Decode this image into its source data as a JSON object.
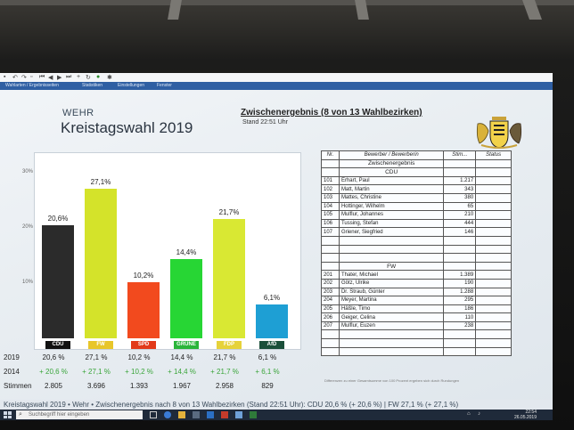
{
  "window": {
    "tabs": [
      "Wahlarten / Ergebnisseiten",
      "Statistiken",
      "Einstellungen",
      "Fenster"
    ]
  },
  "slide": {
    "brand": "WEHR",
    "title": "Kreistagswahl 2019",
    "interim": "Zwischenergebnis (8 von 13 Wahlbezirken)",
    "stand": "Stand 22:51 Uhr"
  },
  "chart_data": {
    "type": "bar",
    "categories": [
      "CDU",
      "FW",
      "SPD",
      "GRÜNE",
      "FDP",
      "AfD"
    ],
    "values": [
      20.6,
      27.1,
      10.2,
      14.4,
      21.7,
      6.1
    ],
    "value_labels": [
      "20,6%",
      "27,1%",
      "10,2%",
      "14,4%",
      "21,7%",
      "6,1%"
    ],
    "colors": [
      "#2b2b2b",
      "#d4e32a",
      "#f24a1e",
      "#27d634",
      "#d9e833",
      "#1e9fd4"
    ],
    "label_colors": [
      "#111111",
      "#e8c62a",
      "#e23a1a",
      "#2ab53a",
      "#e6d23a",
      "#1a4f3a"
    ],
    "label_text_colors": [
      "#ffffff",
      "#ffffff",
      "#ffffff",
      "#ffffff",
      "#ffffff",
      "#ffffff"
    ],
    "yticks": [
      "10%",
      "20%",
      "30%"
    ],
    "ylim": [
      0,
      32
    ]
  },
  "results": {
    "rows": [
      {
        "label": "2019",
        "values": [
          "20,6 %",
          "27,1 %",
          "10,2 %",
          "14,4 %",
          "21,7 %",
          "6,1 %"
        ]
      },
      {
        "label": "2014",
        "values": [
          "+ 20,6 %",
          "+ 27,1 %",
          "+ 10,2 %",
          "+ 14,4 %",
          "+ 21,7 %",
          "+ 6,1 %"
        ]
      },
      {
        "label": "Stimmen",
        "values": [
          "2.805",
          "3.696",
          "1.393",
          "1.967",
          "2.958",
          "829"
        ]
      }
    ]
  },
  "table": {
    "headers": [
      "Nr.",
      "Bewerber / Bewerberin",
      "Stim...",
      "Status"
    ],
    "subtitle": "Zwischenergebnis",
    "groups": [
      {
        "party": "CDU",
        "rows": [
          [
            "101",
            "Erhart, Paul",
            "1.217"
          ],
          [
            "102",
            "Matt, Martin",
            "343"
          ],
          [
            "103",
            "Mattes, Christine",
            "380"
          ],
          [
            "104",
            "Hottinger, Wilhelm",
            "65"
          ],
          [
            "105",
            "Mulflur, Johannes",
            "210"
          ],
          [
            "106",
            "Tussing, Stefan",
            "444"
          ],
          [
            "107",
            "Griener, Siegfried",
            "146"
          ]
        ]
      },
      {
        "party": "FW",
        "rows": [
          [
            "201",
            "Thater, Michael",
            "1.389"
          ],
          [
            "202",
            "Götz, Ulrike",
            "190"
          ],
          [
            "203",
            "Dr. Straub, Günter",
            "1.288"
          ],
          [
            "204",
            "Meyer, Martina",
            "295"
          ],
          [
            "205",
            "Häßle, Timo",
            "186"
          ],
          [
            "206",
            "Geiger, Celina",
            "110"
          ],
          [
            "207",
            "Mulflur, Euzen",
            "238"
          ]
        ]
      }
    ],
    "footnote": "Differenzen zu einer Gesamtsumme von 100 Prozent ergeben sich durch Rundungen"
  },
  "ticker": "Kreistagswahl 2019  •  Wehr  •  Zwischenergebnis nach 8 von 13 Wahlbezirken (Stand 22:51 Uhr):  CDU  20,6 % (+ 20,6 %)   |   FW  27,1 % (+ 27,1 %)",
  "taskbar": {
    "search_placeholder": "Suchbegriff hier eingeben",
    "time": "22:54",
    "date": "26.05.2019"
  }
}
